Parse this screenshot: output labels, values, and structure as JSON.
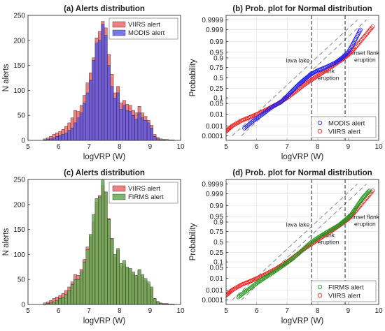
{
  "colors": {
    "viirs": "#f08080",
    "modis": "#5555ee",
    "firms": "#66aa55",
    "viirs_point": "#ee2222",
    "modis_point": "#2222ee",
    "firms_point": "#229922",
    "grid": "#e0e0e0"
  },
  "chart_data": [
    {
      "id": "a",
      "type": "bar",
      "title": "(a) Alerts distribution",
      "xlabel": "logVRP (W)",
      "ylabel": "N alerts",
      "xlim": [
        5,
        10
      ],
      "ylim": [
        0,
        250
      ],
      "xticks": [
        "5",
        "6",
        "7",
        "8",
        "9",
        "10"
      ],
      "yticks": [
        "0",
        "50",
        "100",
        "150",
        "200",
        "250"
      ],
      "legend_position": "top-right",
      "bin_width": 0.1,
      "bin_starts": [
        5.5,
        5.6,
        5.7,
        5.8,
        5.9,
        6.0,
        6.1,
        6.2,
        6.3,
        6.4,
        6.5,
        6.6,
        6.7,
        6.8,
        6.9,
        7.0,
        7.1,
        7.2,
        7.3,
        7.4,
        7.5,
        7.6,
        7.7,
        7.8,
        7.9,
        8.0,
        8.1,
        8.2,
        8.3,
        8.4,
        8.5,
        8.6,
        8.7,
        8.8,
        8.9,
        9.0,
        9.1,
        9.2,
        9.3,
        9.4,
        9.5,
        9.6,
        9.7,
        9.8
      ],
      "series": [
        {
          "name": "VIIRS alert",
          "values": [
            3,
            5,
            8,
            12,
            15,
            18,
            22,
            28,
            35,
            45,
            60,
            58,
            70,
            90,
            115,
            135,
            165,
            205,
            218,
            238,
            225,
            172,
            132,
            95,
            108,
            75,
            80,
            72,
            70,
            60,
            55,
            68,
            55,
            48,
            40,
            30,
            12,
            6,
            3,
            2,
            2,
            1,
            1,
            0
          ]
        },
        {
          "name": "MODIS alert",
          "values": [
            1,
            2,
            3,
            5,
            8,
            10,
            12,
            15,
            20,
            25,
            35,
            45,
            55,
            75,
            95,
            120,
            160,
            195,
            200,
            232,
            210,
            150,
            108,
            85,
            95,
            62,
            70,
            60,
            58,
            50,
            42,
            55,
            45,
            40,
            35,
            25,
            8,
            3,
            1,
            1,
            0,
            0,
            0,
            0
          ]
        }
      ]
    },
    {
      "id": "b",
      "type": "scatter",
      "title": "(b) Prob. plot for Normal distribution",
      "xlabel": "logVRP (W)",
      "ylabel": "Probability",
      "xlim": [
        5,
        10
      ],
      "xticks": [
        "5",
        "6",
        "7",
        "8",
        "9",
        "10"
      ],
      "yticks": [
        "0.0001",
        "0.001",
        "0.01",
        "0.05",
        "0.1",
        "0.25",
        "0.5",
        "0.75",
        "0.9",
        "0.95",
        "0.99",
        "0.999",
        "0.9999"
      ],
      "legend_position": "bottom-right",
      "vlines": [
        7.8,
        8.9
      ],
      "annotations": [
        "lava lake",
        "flank eruption",
        "onset flank eruption"
      ],
      "series": [
        {
          "name": "MODIS alert",
          "x": [
            5.6,
            5.9,
            6.2,
            6.5,
            6.8,
            7.0,
            7.2,
            7.4,
            7.6,
            7.8,
            8.0,
            8.3,
            8.6,
            8.8,
            9.0,
            9.2,
            9.4
          ],
          "y": [
            0.0006,
            0.003,
            0.01,
            0.03,
            0.06,
            0.12,
            0.22,
            0.35,
            0.48,
            0.6,
            0.68,
            0.76,
            0.84,
            0.9,
            0.95,
            0.99,
            0.999
          ]
        },
        {
          "name": "VIIRS alert",
          "x": [
            5.0,
            5.2,
            5.5,
            5.8,
            6.1,
            6.4,
            6.7,
            7.0,
            7.3,
            7.6,
            7.9,
            8.2,
            8.5,
            8.8,
            9.0,
            9.2,
            9.5,
            9.8
          ],
          "y": [
            0.0003,
            0.001,
            0.003,
            0.006,
            0.012,
            0.025,
            0.05,
            0.1,
            0.2,
            0.35,
            0.5,
            0.65,
            0.78,
            0.88,
            0.93,
            0.97,
            0.995,
            0.9995
          ]
        }
      ]
    },
    {
      "id": "c",
      "type": "bar",
      "title": "(c) Alerts distribution",
      "xlabel": "logVRP (W)",
      "ylabel": "N alerts",
      "xlim": [
        5,
        10
      ],
      "ylim": [
        0,
        250
      ],
      "xticks": [
        "5",
        "6",
        "7",
        "8",
        "9",
        "10"
      ],
      "yticks": [
        "0",
        "50",
        "100",
        "150",
        "200",
        "250"
      ],
      "legend_position": "top-right",
      "bin_width": 0.1,
      "bin_starts": [
        5.5,
        5.6,
        5.7,
        5.8,
        5.9,
        6.0,
        6.1,
        6.2,
        6.3,
        6.4,
        6.5,
        6.6,
        6.7,
        6.8,
        6.9,
        7.0,
        7.1,
        7.2,
        7.3,
        7.4,
        7.5,
        7.6,
        7.7,
        7.8,
        7.9,
        8.0,
        8.1,
        8.2,
        8.3,
        8.4,
        8.5,
        8.6,
        8.7,
        8.8,
        8.9,
        9.0,
        9.1,
        9.2,
        9.3,
        9.4,
        9.5,
        9.6,
        9.7,
        9.8
      ],
      "series": [
        {
          "name": "VIIRS alert",
          "values": [
            3,
            5,
            8,
            12,
            15,
            18,
            22,
            28,
            35,
            45,
            60,
            58,
            70,
            90,
            115,
            135,
            165,
            205,
            218,
            238,
            225,
            172,
            132,
            95,
            108,
            75,
            80,
            72,
            70,
            60,
            55,
            68,
            55,
            48,
            40,
            30,
            12,
            6,
            3,
            2,
            2,
            1,
            1,
            0
          ]
        },
        {
          "name": "FIRMS alert",
          "values": [
            1,
            2,
            3,
            5,
            8,
            12,
            15,
            20,
            28,
            40,
            50,
            50,
            65,
            85,
            110,
            140,
            180,
            212,
            215,
            250,
            225,
            170,
            130,
            100,
            112,
            82,
            88,
            75,
            72,
            65,
            58,
            70,
            60,
            52,
            45,
            35,
            12,
            5,
            2,
            1,
            1,
            0,
            0,
            0
          ]
        }
      ]
    },
    {
      "id": "d",
      "type": "scatter",
      "title": "(d) Prob. plot for Normal distribution",
      "xlabel": "logVRP (W)",
      "ylabel": "Probability",
      "xlim": [
        5,
        10
      ],
      "xticks": [
        "5",
        "6",
        "7",
        "8",
        "9",
        "10"
      ],
      "yticks": [
        "0.0001",
        "0.001",
        "0.01",
        "0.05",
        "0.1",
        "0.25",
        "0.5",
        "0.75",
        "0.9",
        "0.95",
        "0.99",
        "0.999",
        "0.9999"
      ],
      "legend_position": "bottom-right",
      "vlines": [
        7.8,
        8.9
      ],
      "annotations": [
        "lava lake",
        "flank eruption",
        "onset flank eruption"
      ],
      "series": [
        {
          "name": "FIRMS alert",
          "x": [
            5.4,
            5.7,
            6.0,
            6.3,
            6.6,
            6.9,
            7.2,
            7.5,
            7.8,
            8.1,
            8.4,
            8.7,
            8.9,
            9.1,
            9.3,
            9.5,
            9.7
          ],
          "y": [
            0.0002,
            0.001,
            0.004,
            0.012,
            0.03,
            0.07,
            0.15,
            0.3,
            0.5,
            0.65,
            0.77,
            0.86,
            0.92,
            0.96,
            0.99,
            0.998,
            0.9995
          ]
        },
        {
          "name": "VIIRS alert",
          "x": [
            5.0,
            5.2,
            5.5,
            5.8,
            6.1,
            6.4,
            6.7,
            7.0,
            7.3,
            7.6,
            7.9,
            8.2,
            8.5,
            8.8,
            9.0,
            9.2,
            9.5,
            9.8
          ],
          "y": [
            0.0003,
            0.001,
            0.003,
            0.006,
            0.012,
            0.025,
            0.05,
            0.1,
            0.2,
            0.35,
            0.5,
            0.65,
            0.78,
            0.88,
            0.93,
            0.97,
            0.995,
            0.9995
          ]
        }
      ]
    }
  ]
}
